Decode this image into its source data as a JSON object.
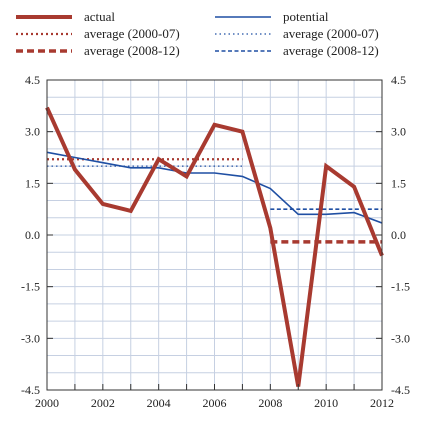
{
  "chart_data": {
    "type": "line",
    "x": [
      2000,
      2001,
      2002,
      2003,
      2004,
      2005,
      2006,
      2007,
      2008,
      2009,
      2010,
      2011,
      2012
    ],
    "xticks": [
      "2000",
      "2002",
      "2004",
      "2006",
      "2008",
      "2010",
      "2012"
    ],
    "yticks": [
      "4.5",
      "3.0",
      "1.5",
      "0.0",
      "-1.5",
      "-3.0",
      "-4.5"
    ],
    "ylim": [
      -4.5,
      4.5
    ],
    "xlim": [
      2000,
      2012
    ],
    "grid": true,
    "legend_position": "top",
    "series": [
      {
        "name": "actual",
        "style": "solid-thick",
        "color": "#a83a30",
        "values": [
          3.7,
          1.9,
          0.9,
          0.7,
          2.2,
          1.7,
          3.2,
          3.0,
          0.2,
          -4.4,
          2.0,
          1.4,
          -0.6
        ]
      },
      {
        "name": "potential",
        "style": "solid-thin",
        "color": "#1f4fa3",
        "values": [
          2.4,
          2.25,
          2.1,
          1.95,
          1.95,
          1.8,
          1.8,
          1.7,
          1.35,
          0.6,
          0.6,
          0.65,
          0.35
        ]
      },
      {
        "name": "average (2000-07)",
        "style": "dotted",
        "color": "#a83a30",
        "x_range": [
          2000,
          2007
        ],
        "value": 2.2
      },
      {
        "name": "average (2008-12)",
        "style": "dashed",
        "color": "#a83a30",
        "x_range": [
          2008,
          2012
        ],
        "value": -0.2
      },
      {
        "name": "average (2000-07)",
        "style": "dotted",
        "color": "#1f4fa3",
        "x_range": [
          2000,
          2007
        ],
        "value": 2.0
      },
      {
        "name": "average (2008-12)",
        "style": "dashed",
        "color": "#1f4fa3",
        "x_range": [
          2008,
          2012
        ],
        "value": 0.75
      }
    ]
  }
}
